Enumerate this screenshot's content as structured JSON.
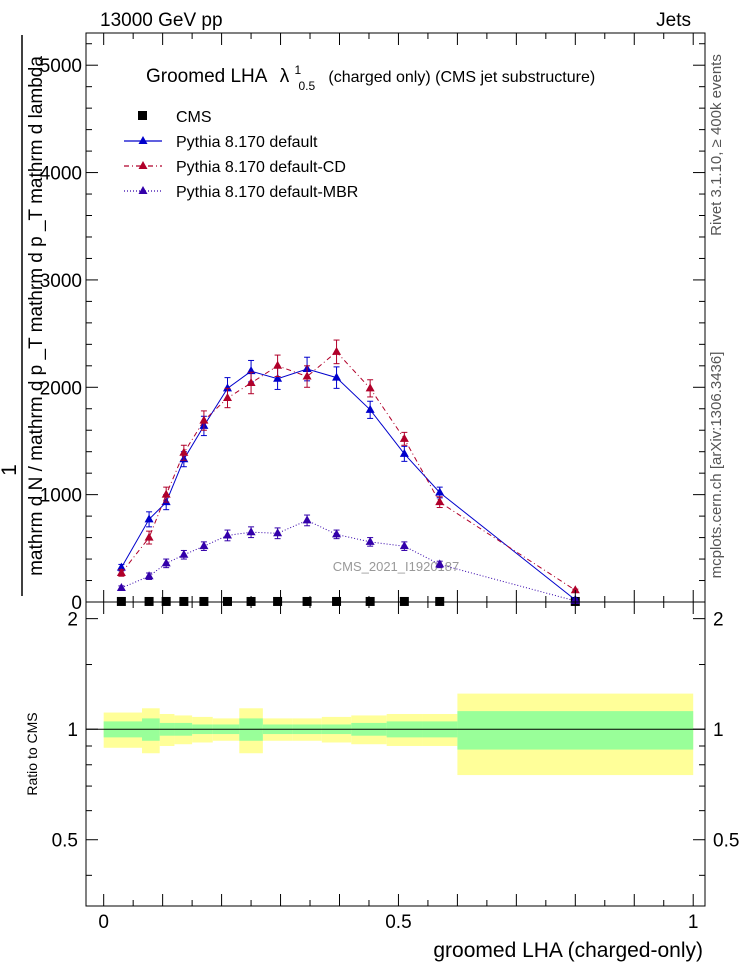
{
  "header": {
    "left": "13000 GeV pp",
    "right": "Jets"
  },
  "side_texts": {
    "rivet": "Rivet 3.1.10, ≥ 400k events",
    "mcplots": "mcplots.cern.ch [arXiv:1306.3436]"
  },
  "watermark": "CMS_2021_I1920187",
  "colors": {
    "cms": "#000000",
    "default": "#0000cc",
    "cd": "#b0002a",
    "mbr": "#3300aa",
    "band_inner": "#99ff99",
    "band_outer": "#ffff99"
  },
  "chart_data": [
    {
      "type": "line",
      "title": "Groomed LHA λ¹₀.₅ (charged only) (CMS jet substructure)",
      "title_main": "Groomed LHA",
      "title_lambda": "λ",
      "title_sup": "1",
      "title_sub": "0.5",
      "title_rest": "(charged only) (CMS jet substructure)",
      "xlabel": "groomed LHA (charged-only)",
      "ylabel_numer": "1",
      "ylabel_denom": "mathrm d N / mathrm d p _T mathrm d p _T mathrm d lambda",
      "ylabel_line1": "mathrm d²N",
      "ylabel_line2": "mathrm d p _T mathrm d p _T mathrm d lambda",
      "xlim": [
        -0.03,
        1.02
      ],
      "ylim": [
        0,
        5300
      ],
      "y_ticks": [
        0,
        1000,
        2000,
        3000,
        4000,
        5000
      ],
      "y_tick_labels": [
        "0",
        "1000",
        "2000",
        "3000",
        "4000",
        "5000"
      ],
      "x_ticks": [
        0,
        0.5,
        1
      ],
      "x_tick_labels": [
        "0",
        "0.5",
        "1"
      ],
      "legend_position": "top-left",
      "legend": [
        "CMS",
        "Pythia 8.170 default",
        "Pythia 8.170 default-CD",
        "Pythia 8.170 default-MBR"
      ],
      "series": [
        {
          "name": "CMS",
          "style": "markers",
          "x": [
            0.03,
            0.077,
            0.106,
            0.136,
            0.17,
            0.21,
            0.25,
            0.295,
            0.345,
            0.395,
            0.452,
            0.51,
            0.57,
            0.8
          ],
          "values": [
            5,
            5,
            5,
            5,
            5,
            5,
            5,
            5,
            5,
            5,
            5,
            5,
            5,
            5
          ]
        },
        {
          "name": "Pythia 8.170 default",
          "style": "solid",
          "x": [
            0.03,
            0.077,
            0.106,
            0.136,
            0.17,
            0.21,
            0.25,
            0.295,
            0.345,
            0.395,
            0.452,
            0.51,
            0.57,
            0.8
          ],
          "values": [
            320,
            770,
            930,
            1330,
            1640,
            1990,
            2150,
            2080,
            2170,
            2090,
            1790,
            1380,
            1020,
            20
          ],
          "errors": [
            30,
            70,
            70,
            70,
            90,
            100,
            100,
            100,
            110,
            100,
            80,
            70,
            50,
            10
          ]
        },
        {
          "name": "Pythia 8.170 default-CD",
          "style": "dashdot",
          "x": [
            0.03,
            0.077,
            0.106,
            0.136,
            0.17,
            0.21,
            0.25,
            0.295,
            0.345,
            0.395,
            0.452,
            0.51,
            0.57,
            0.8
          ],
          "values": [
            270,
            600,
            1000,
            1390,
            1690,
            1900,
            2040,
            2200,
            2100,
            2330,
            1990,
            1520,
            930,
            110
          ],
          "errors": [
            30,
            60,
            70,
            70,
            90,
            90,
            100,
            100,
            100,
            110,
            80,
            60,
            50,
            10
          ]
        },
        {
          "name": "Pythia 8.170 default-MBR",
          "style": "dotted",
          "x": [
            0.03,
            0.077,
            0.106,
            0.136,
            0.17,
            0.21,
            0.25,
            0.295,
            0.345,
            0.395,
            0.452,
            0.51,
            0.57,
            0.8
          ],
          "values": [
            130,
            240,
            360,
            440,
            520,
            620,
            650,
            640,
            760,
            630,
            560,
            520,
            350,
            10
          ],
          "errors": [
            20,
            30,
            40,
            40,
            40,
            50,
            50,
            50,
            50,
            40,
            40,
            40,
            30,
            5
          ]
        }
      ]
    },
    {
      "type": "area",
      "ylabel": "Ratio to CMS",
      "xlim": [
        -0.03,
        1.02
      ],
      "ylim": [
        0.33,
        2.22
      ],
      "y_ticks": [
        0.5,
        1,
        2
      ],
      "y_tick_labels": [
        "0.5",
        "1",
        "2"
      ],
      "x_ticks": [
        0,
        0.5,
        1
      ],
      "x_tick_labels": [
        "0",
        "0.5",
        "1"
      ],
      "bin_edges": [
        0,
        0.065,
        0.095,
        0.12,
        0.15,
        0.185,
        0.23,
        0.27,
        0.32,
        0.37,
        0.42,
        0.48,
        0.54,
        0.6,
        1.0
      ],
      "inner_band": [
        [
          0.95,
          1.05
        ],
        [
          0.93,
          1.07
        ],
        [
          0.96,
          1.04
        ],
        [
          0.96,
          1.04
        ],
        [
          0.97,
          1.03
        ],
        [
          0.97,
          1.03
        ],
        [
          0.93,
          1.07
        ],
        [
          0.97,
          1.03
        ],
        [
          0.97,
          1.03
        ],
        [
          0.97,
          1.03
        ],
        [
          0.96,
          1.04
        ],
        [
          0.95,
          1.05
        ],
        [
          0.95,
          1.05
        ],
        [
          0.88,
          1.12
        ]
      ],
      "outer_band": [
        [
          0.89,
          1.11
        ],
        [
          0.86,
          1.14
        ],
        [
          0.9,
          1.1
        ],
        [
          0.91,
          1.09
        ],
        [
          0.92,
          1.08
        ],
        [
          0.93,
          1.07
        ],
        [
          0.86,
          1.14
        ],
        [
          0.93,
          1.07
        ],
        [
          0.93,
          1.07
        ],
        [
          0.92,
          1.08
        ],
        [
          0.91,
          1.09
        ],
        [
          0.9,
          1.1
        ],
        [
          0.9,
          1.1
        ],
        [
          0.75,
          1.25
        ]
      ],
      "reference": 1
    }
  ]
}
